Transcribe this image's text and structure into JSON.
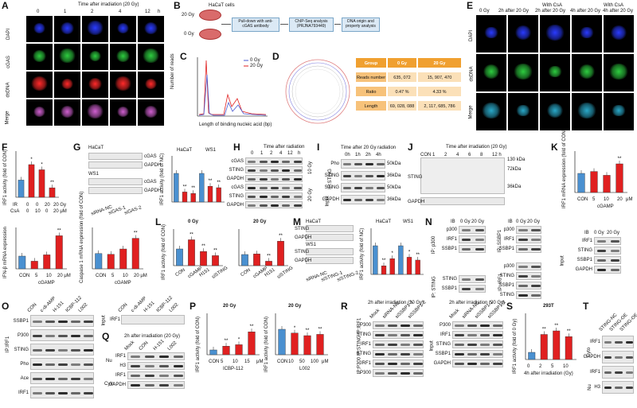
{
  "panels": {
    "A": {
      "letter": "A",
      "header": "Time after irradiation (20 Gy)",
      "columns": [
        "0",
        "1",
        "2",
        "4",
        "12"
      ],
      "unit": "h",
      "rows": [
        "DAPI",
        "cGAS",
        "dsDNA",
        "Merge"
      ]
    },
    "B": {
      "letter": "B",
      "dose_top": "20 Gy",
      "dose_bottom": "0 Gy",
      "cells": "HaCaT cells",
      "step1": "Pull-down with anti-cGAS antibody",
      "step2": "ChIP-Seq analysis (PRJNA793449)",
      "step3": "DNA origin and property analysis"
    },
    "C": {
      "letter": "C",
      "ylabel": "Number of reads",
      "xlabel": "Length of binding nucleic acid (bp)",
      "legend": [
        "0 Gy",
        "20 Gy"
      ]
    },
    "D": {
      "letter": "D",
      "headers": [
        "Group",
        "0 Gy",
        "20 Gy"
      ],
      "rows": [
        [
          "Reads number",
          "635, 072",
          "15, 907, 470"
        ],
        [
          "Ratio",
          "0.47 %",
          "4.33 %"
        ],
        [
          "Length",
          "69, 028, 088",
          "2, 117, 685, 786"
        ]
      ]
    },
    "E": {
      "letter": "E",
      "columns": [
        "0 Gy",
        "2h after 20 Gy",
        "2h after 20 Gy",
        "4h after 20 Gy",
        "4h after 20 Gy"
      ],
      "with_csa": "With CsA",
      "rows": [
        "DAPI",
        "dsDNA",
        "Merge"
      ]
    },
    "F": {
      "letter": "F",
      "ylabel": "IRF1 activity (fold of CON)",
      "ir_label": "IR",
      "csa_label": "CsA",
      "ir": [
        "0",
        "0",
        "20",
        "20 Gy"
      ],
      "csa": [
        "0",
        "10",
        "0",
        "20 μM"
      ]
    },
    "G": {
      "letter": "G",
      "cell1": "HaCaT",
      "cell2": "WS1",
      "blots": [
        "cGAS",
        "GAPDH",
        "cGAS",
        "GAPDH"
      ],
      "lanes": [
        "siRNA-NC",
        "siGAS-1",
        "siGAS-2"
      ],
      "ylabel": "IRF1 activity (fold of NC)"
    },
    "H": {
      "letter": "H",
      "header": "Time after radiation",
      "times": [
        "0",
        "1",
        "2",
        "4",
        "12",
        "h"
      ],
      "blots": [
        "cGAS",
        "STING",
        "GAPDH",
        "cGAS",
        "STING",
        "GAPDH"
      ],
      "dose1": "10 Gy",
      "dose2": "20 Gy"
    },
    "I": {
      "letter": "I",
      "header": "Time after 20 Gy radiation",
      "times": [
        "0h",
        "1h",
        "2h",
        "4h"
      ],
      "blots": [
        "Pho",
        "STING",
        "STING",
        "GAPDH"
      ],
      "ip": "IP:STING",
      "input": "Input",
      "sizes": [
        "50kDa",
        "36kDa",
        "50kDa",
        "36kDa"
      ]
    },
    "J": {
      "letter": "J",
      "header": "Time after irradiation (20 Gy)",
      "lanes": [
        "CON",
        "1",
        "2",
        "4",
        "6",
        "8",
        "12 h"
      ],
      "blots": [
        "STING",
        "GAPDH"
      ],
      "sizes": [
        "130 kDa",
        "72kDa",
        "36kDa"
      ]
    },
    "K": {
      "letter": "K",
      "ylabel": "IRF1 mRNA expression (fold of CON)",
      "xlabels": [
        "CON",
        "5",
        "10",
        "20"
      ],
      "xunit": "μM",
      "xtitle": "cGAMP"
    },
    "ifnb": {
      "ylabel": "IFN-β mRNA expression",
      "xlabels": [
        "CON",
        "5",
        "10",
        "20 μM"
      ],
      "xtitle": "cGAMP"
    },
    "casp": {
      "ylabel": "Caspase 1 mRNA expression (fold of CON)",
      "xlabels": [
        "CON",
        "5",
        "10",
        "20 μM"
      ],
      "xtitle": "cGAMP"
    },
    "L": {
      "letter": "L",
      "title1": "0 Gy",
      "title2": "20 Gy",
      "ylabel": "IRF1 activity (fold of CON)",
      "xlabels": [
        "CON",
        "cGAMP",
        "H151",
        "siSTING"
      ]
    },
    "M": {
      "letter": "M",
      "cell1": "HaCaT",
      "cell2": "WS1",
      "blots": [
        "STING",
        "GAPDH",
        "STING",
        "GAPDH"
      ],
      "lanes": [
        "siRNA-NC",
        "siSTING-1",
        "siSTING-2"
      ],
      "ylabel": "IRF1 activity (fold of NC)"
    },
    "N": {
      "letter": "N",
      "ib": "IB",
      "doses": [
        "0 Gy",
        "20 Gy"
      ],
      "ip1": "IP: p300",
      "ip2": "IP: STING",
      "ip3": "IP: SSBP1",
      "ip4": "IP: IRF1",
      "blots_p300": [
        "p300",
        "IRF1",
        "SSBP1"
      ],
      "blots_sting": [
        "STING",
        "SSBP1"
      ],
      "blots_ssbp1": [
        "p300",
        "IRF1",
        "SSBP1"
      ],
      "blots_irf1": [
        "p300",
        "STING",
        "SSBP1",
        "STING"
      ],
      "input": "Input",
      "blots_input": [
        "IRF1",
        "STING",
        "SSBP1",
        "GAPDH"
      ]
    },
    "O": {
      "letter": "O",
      "lanes": [
        "CON",
        "c-di-AMP",
        "H-151",
        "ICBP-112",
        "L002"
      ],
      "ip": "IP:IRF1",
      "blots": [
        "SSBP1",
        "P300",
        "STING",
        "Pho",
        "Ace",
        "IRF1"
      ],
      "input": "Input",
      "input_blot": "IRF1"
    },
    "P": {
      "letter": "P",
      "title1": "20 Gy",
      "title2": "20 Gy",
      "ylabel": "IRF1 activity (fold of CON)",
      "x1": [
        "CON",
        "5",
        "10",
        "15"
      ],
      "x1unit": "μM",
      "x1title": "ICBP-112",
      "x2": [
        "CON",
        "10",
        "50",
        "100"
      ],
      "x2unit": "μM",
      "x2title": "L002"
    },
    "Q": {
      "letter": "Q",
      "header": "2h after irradiation (20 Gy)",
      "lanes": [
        "Mock",
        "CON",
        "H-151",
        "L002"
      ],
      "nu": "Nu",
      "cyto": "Cyto",
      "blots": [
        "IRF1",
        "H3",
        "IRF1",
        "GAPDH"
      ]
    },
    "R": {
      "letter": "R",
      "header": "2h after irradiation (20 Gy)",
      "lanes": [
        "Mock",
        "siRNA-NC",
        "siSSBP1-1",
        "siSSBP1-2"
      ],
      "ip": "IP:P300 IP:STING IP:IRF1",
      "blots": [
        "P300",
        "STING",
        "IRF1",
        "STING",
        "IRF1",
        "P300"
      ],
      "input": "Input",
      "input_blots": [
        "P300",
        "IRF1",
        "STING",
        "SSBP1",
        "GAPDH"
      ]
    },
    "S": {
      "letter": "S",
      "title": "293T",
      "ylabel": "IRF1 activity (fold of 0 Gy)",
      "xlabels": [
        "0",
        "2",
        "5",
        "10"
      ],
      "xtitle": "4h after irradiation (Gy)"
    },
    "T": {
      "letter": "T",
      "lanes": [
        "STING-NC",
        "STING-OE",
        "STING-OE +ICBP-112"
      ],
      "cyto": "Cyto",
      "nu": "Nu",
      "blots": [
        "IRF1",
        "GAPDH",
        "IRF1",
        "H3"
      ]
    }
  },
  "sig": "**",
  "sig1": "*",
  "colors": {
    "red": "#e02020",
    "blue": "#4a90d0",
    "gray": "#d0d0d0"
  },
  "chart_data": [
    {
      "panel": "F",
      "type": "bar",
      "categories": [
        "0/0",
        "0/10",
        "20/0",
        "20/20"
      ],
      "values": [
        1.0,
        1.9,
        1.6,
        0.55
      ],
      "ylim": [
        0,
        2.5
      ],
      "colors": [
        "#4a90d0",
        "#e02020",
        "#e02020",
        "#e02020"
      ]
    },
    {
      "panel": "G",
      "type": "bar",
      "categories": [
        "HaCaT siRNA-NC",
        "HaCaT siGAS-1",
        "HaCaT siGAS-2",
        "WS1 siRNA-NC",
        "WS1 siGAS-1",
        "WS1 siGAS-2"
      ],
      "values": [
        1.0,
        0.35,
        0.3,
        1.0,
        0.55,
        0.5
      ],
      "ylim": [
        0,
        1.5
      ]
    },
    {
      "panel": "K",
      "type": "bar",
      "categories": [
        "CON",
        "5",
        "10",
        "20"
      ],
      "values": [
        1.0,
        1.1,
        0.9,
        1.5
      ],
      "ylim": [
        0,
        2.0
      ]
    },
    {
      "panel": "IFN-b",
      "type": "bar",
      "categories": [
        "CON",
        "5",
        "10",
        "20"
      ],
      "values": [
        1.0,
        0.6,
        1.1,
        2.6
      ],
      "ylim": [
        0,
        3.0
      ]
    },
    {
      "panel": "Caspase1",
      "type": "bar",
      "categories": [
        "CON",
        "5",
        "10",
        "20"
      ],
      "values": [
        1.0,
        0.95,
        1.3,
        2.0
      ],
      "ylim": [
        0,
        2.5
      ]
    },
    {
      "panel": "L-0Gy",
      "type": "bar",
      "categories": [
        "CON",
        "cGAMP",
        "H151",
        "siSTING"
      ],
      "values": [
        1.0,
        1.55,
        0.85,
        0.6
      ],
      "ylim": [
        0,
        2.0
      ]
    },
    {
      "panel": "L-20Gy",
      "type": "bar",
      "categories": [
        "CON",
        "cGAMP",
        "H151",
        "siSTING"
      ],
      "values": [
        1.0,
        1.05,
        0.4,
        2.2
      ],
      "ylim": [
        0,
        3.0
      ]
    },
    {
      "panel": "M",
      "type": "bar",
      "categories": [
        "HaCaT siRNA-NC",
        "HaCaT siSTING-1",
        "HaCaT siSTING-2",
        "WS1 siRNA-NC",
        "WS1 siSTING-1",
        "WS1 siSTING-2"
      ],
      "values": [
        1.0,
        0.3,
        0.55,
        1.0,
        0.6,
        0.5
      ],
      "ylim": [
        0,
        1.5
      ]
    },
    {
      "panel": "P-ICBP",
      "type": "bar",
      "categories": [
        "CON",
        "5",
        "10",
        "15"
      ],
      "values": [
        1.0,
        1.8,
        2.1,
        4.8
      ],
      "ylim": [
        0,
        8
      ]
    },
    {
      "panel": "P-L002",
      "type": "bar",
      "categories": [
        "CON",
        "10",
        "50",
        "100"
      ],
      "values": [
        1.0,
        0.85,
        0.75,
        0.8
      ],
      "ylim": [
        0,
        1.5
      ]
    },
    {
      "panel": "S",
      "type": "bar",
      "categories": [
        "0",
        "2",
        "5",
        "10"
      ],
      "values": [
        1.0,
        3.5,
        4.0,
        3.2
      ],
      "ylim": [
        0,
        6
      ]
    }
  ]
}
